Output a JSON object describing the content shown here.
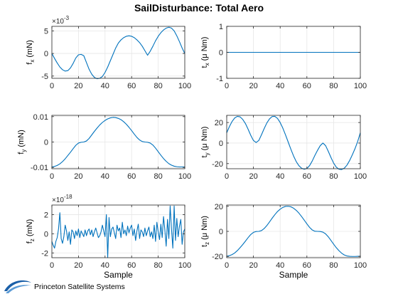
{
  "figure": {
    "title": "SailDisturbance: Total Aero",
    "logo_text": "Princeton Satellite Systems"
  },
  "colors": {
    "line": "#0072BD",
    "axis": "#262626",
    "grid": "#e6e6e6"
  },
  "chart_data": [
    {
      "id": "fx",
      "type": "line",
      "ylabel": "f",
      "ylabel_sub": "x",
      "ylabel_unit": "(mN)",
      "exponent_base": "×10",
      "exponent": "-3",
      "xlabel": "",
      "xlim": [
        0,
        100
      ],
      "ylim": [
        -5.5,
        6.0
      ],
      "xticks": [
        "0",
        "20",
        "40",
        "60",
        "80",
        "100"
      ],
      "yticks": [
        {
          "v": -5,
          "label": "-5"
        },
        {
          "v": 0,
          "label": "0"
        },
        {
          "v": 5,
          "label": "5"
        }
      ],
      "grid": true,
      "x": [
        0,
        2,
        4,
        6,
        8,
        10,
        12,
        14,
        16,
        18,
        20,
        22,
        24,
        26,
        28,
        30,
        32,
        34,
        36,
        38,
        40,
        42,
        44,
        46,
        48,
        50,
        52,
        54,
        56,
        58,
        60,
        62,
        64,
        66,
        68,
        70,
        72,
        74,
        76,
        78,
        80,
        82,
        84,
        86,
        88,
        90,
        92,
        94,
        96,
        98,
        100
      ],
      "y": [
        0.0,
        -1.1,
        -2.1,
        -3.0,
        -3.6,
        -3.9,
        -3.8,
        -3.2,
        -2.2,
        -1.0,
        -0.3,
        -0.2,
        -0.5,
        -2.0,
        -3.5,
        -4.6,
        -5.3,
        -5.6,
        -5.5,
        -5.1,
        -4.2,
        -3.0,
        -1.6,
        -0.2,
        1.2,
        2.3,
        3.0,
        3.5,
        3.8,
        3.9,
        3.8,
        3.5,
        3.0,
        2.4,
        1.6,
        0.6,
        -0.4,
        0.5,
        1.6,
        2.8,
        3.8,
        4.6,
        5.2,
        5.6,
        5.8,
        5.6,
        5.0,
        3.9,
        2.6,
        1.2,
        0.0
      ]
    },
    {
      "id": "tx",
      "type": "line",
      "ylabel": "t",
      "ylabel_sub": "x",
      "ylabel_unit": "(μ Nm)",
      "xlabel": "",
      "xlim": [
        0,
        100
      ],
      "ylim": [
        -1,
        1
      ],
      "xticks": [
        "0",
        "20",
        "40",
        "60",
        "80",
        "100"
      ],
      "yticks": [
        {
          "v": -1,
          "label": "-1"
        },
        {
          "v": 0,
          "label": "0"
        },
        {
          "v": 1,
          "label": "1"
        }
      ],
      "grid": true,
      "x": [
        0,
        100
      ],
      "y": [
        0,
        0
      ]
    },
    {
      "id": "fy",
      "type": "line",
      "ylabel": "f",
      "ylabel_sub": "y",
      "ylabel_unit": "(mN)",
      "xlabel": "",
      "xlim": [
        0,
        100
      ],
      "ylim": [
        -0.0105,
        0.0105
      ],
      "xticks": [
        "0",
        "20",
        "40",
        "60",
        "80",
        "100"
      ],
      "yticks": [
        {
          "v": -0.01,
          "label": "-0.01"
        },
        {
          "v": 0,
          "label": "0"
        },
        {
          "v": 0.01,
          "label": "0.01"
        }
      ],
      "grid": true,
      "x": [
        0,
        2,
        4,
        6,
        8,
        10,
        12,
        14,
        16,
        18,
        20,
        22,
        24,
        26,
        28,
        30,
        32,
        34,
        36,
        38,
        40,
        42,
        44,
        46,
        48,
        50,
        52,
        54,
        56,
        58,
        60,
        62,
        64,
        66,
        68,
        70,
        72,
        74,
        76,
        78,
        80,
        82,
        84,
        86,
        88,
        90,
        92,
        94,
        96,
        98,
        100
      ],
      "y": [
        -0.0098,
        -0.0096,
        -0.0092,
        -0.0086,
        -0.0077,
        -0.0066,
        -0.0053,
        -0.004,
        -0.0026,
        -0.0013,
        -0.0004,
        -0.0001,
        0.0,
        0.0004,
        0.0014,
        0.0028,
        0.0042,
        0.0055,
        0.0067,
        0.0077,
        0.0085,
        0.0091,
        0.0095,
        0.0097,
        0.0096,
        0.0093,
        0.0088,
        0.008,
        0.007,
        0.0058,
        0.0045,
        0.0031,
        0.0018,
        0.0008,
        0.0002,
        0.0,
        -0.0001,
        -0.0004,
        -0.0012,
        -0.0024,
        -0.0038,
        -0.0052,
        -0.0065,
        -0.0076,
        -0.0085,
        -0.0091,
        -0.0095,
        -0.0097,
        -0.0098,
        -0.0098,
        -0.0098
      ]
    },
    {
      "id": "ty",
      "type": "line",
      "ylabel": "t",
      "ylabel_sub": "y",
      "ylabel_unit": "(μ Nm)",
      "xlabel": "",
      "xlim": [
        0,
        100
      ],
      "ylim": [
        -25,
        27
      ],
      "xticks": [
        "0",
        "20",
        "40",
        "60",
        "80",
        "100"
      ],
      "yticks": [
        {
          "v": -20,
          "label": "-20"
        },
        {
          "v": 0,
          "label": "0"
        },
        {
          "v": 20,
          "label": "20"
        }
      ],
      "grid": true,
      "x": [
        0,
        2,
        4,
        6,
        8,
        10,
        12,
        14,
        16,
        18,
        20,
        22,
        24,
        26,
        28,
        30,
        32,
        34,
        36,
        38,
        40,
        42,
        44,
        46,
        48,
        50,
        52,
        54,
        56,
        58,
        60,
        62,
        64,
        66,
        68,
        70,
        72,
        74,
        76,
        78,
        80,
        82,
        84,
        86,
        88,
        90,
        92,
        94,
        96,
        98,
        100
      ],
      "y": [
        10.0,
        16.0,
        21.0,
        24.5,
        26.0,
        25.5,
        23.0,
        19.0,
        13.5,
        7.5,
        2.5,
        0.5,
        2.5,
        8.0,
        14.0,
        19.5,
        23.5,
        25.8,
        26.0,
        24.0,
        20.0,
        14.5,
        8.0,
        1.0,
        -6.0,
        -12.5,
        -18.0,
        -22.0,
        -24.5,
        -25.5,
        -24.8,
        -22.0,
        -17.5,
        -12.0,
        -7.0,
        -2.5,
        0.0,
        -2.5,
        -8.0,
        -14.0,
        -19.5,
        -23.5,
        -25.5,
        -25.8,
        -24.5,
        -21.5,
        -17.0,
        -11.5,
        -5.5,
        1.5,
        10.0
      ]
    },
    {
      "id": "fz",
      "type": "line",
      "ylabel": "f",
      "ylabel_sub": "z",
      "ylabel_unit": "(mN)",
      "exponent_base": "×10",
      "exponent": "-18",
      "xlabel": "Sample",
      "xlim": [
        0,
        100
      ],
      "ylim": [
        -2.5,
        3.0
      ],
      "xticks": [
        "0",
        "20",
        "40",
        "60",
        "80",
        "100"
      ],
      "yticks": [
        {
          "v": -2,
          "label": "-2"
        },
        {
          "v": 0,
          "label": "0"
        },
        {
          "v": 2,
          "label": "2"
        }
      ],
      "grid": true,
      "x": [
        0,
        1,
        2,
        3,
        4,
        5,
        6,
        7,
        8,
        9,
        10,
        11,
        12,
        13,
        14,
        15,
        16,
        17,
        18,
        19,
        20,
        21,
        22,
        23,
        24,
        25,
        26,
        27,
        28,
        29,
        30,
        31,
        32,
        33,
        34,
        35,
        36,
        37,
        38,
        39,
        40,
        41,
        42,
        43,
        44,
        45,
        46,
        47,
        48,
        49,
        50,
        51,
        52,
        53,
        54,
        55,
        56,
        57,
        58,
        59,
        60,
        61,
        62,
        63,
        64,
        65,
        66,
        67,
        68,
        69,
        70,
        71,
        72,
        73,
        74,
        75,
        76,
        77,
        78,
        79,
        80,
        81,
        82,
        83,
        84,
        85,
        86,
        87,
        88,
        89,
        90,
        91,
        92,
        93,
        94,
        95,
        96,
        97,
        98,
        99,
        100
      ],
      "y": [
        -0.8,
        -1.2,
        -1.5,
        -0.8,
        -0.4,
        0.5,
        2.2,
        -0.5,
        -1.0,
        -0.3,
        0.9,
        0.3,
        -0.7,
        0.2,
        -1.1,
        0.4,
        0.2,
        -0.5,
        0.3,
        -0.2,
        0.5,
        -0.4,
        0.3,
        0.0,
        -0.3,
        0.4,
        -0.2,
        0.3,
        0.5,
        -0.1,
        0.4,
        -0.3,
        0.2,
        0.6,
        0.1,
        -0.4,
        -0.2,
        0.2,
        0.9,
        0.3,
        -0.3,
        2.0,
        -2.5,
        1.7,
        -0.3,
        0.5,
        0.7,
        0.1,
        -0.5,
        0.9,
        0.3,
        0.6,
        -0.4,
        1.2,
        0.0,
        0.4,
        -0.2,
        0.8,
        0.1,
        0.6,
        0.9,
        -0.2,
        0.5,
        -0.7,
        0.3,
        1.0,
        -0.5,
        0.4,
        0.2,
        -0.3,
        0.6,
        -0.2,
        0.3,
        0.7,
        -0.3,
        0.2,
        -0.5,
        0.9,
        -0.8,
        1.2,
        0.2,
        -0.6,
        1.0,
        -0.4,
        1.8,
        0.4,
        -1.3,
        1.5,
        -0.5,
        2.9,
        0.5,
        -1.5,
        2.9,
        -0.7,
        1.6,
        -0.3,
        0.8,
        1.5,
        -1.1,
        0.2,
        0.5
      ]
    },
    {
      "id": "tz",
      "type": "line",
      "ylabel": "t",
      "ylabel_sub": "z",
      "ylabel_unit": "(μ Nm)",
      "xlabel": "Sample",
      "xlim": [
        0,
        100
      ],
      "ylim": [
        -21,
        21
      ],
      "xticks": [
        "0",
        "20",
        "40",
        "60",
        "80",
        "100"
      ],
      "yticks": [
        {
          "v": -20,
          "label": "-20"
        },
        {
          "v": 0,
          "label": "0"
        },
        {
          "v": 20,
          "label": "20"
        }
      ],
      "grid": true,
      "x": [
        0,
        2,
        4,
        6,
        8,
        10,
        12,
        14,
        16,
        18,
        20,
        22,
        24,
        26,
        28,
        30,
        32,
        34,
        36,
        38,
        40,
        42,
        44,
        46,
        48,
        50,
        52,
        54,
        56,
        58,
        60,
        62,
        64,
        66,
        68,
        70,
        72,
        74,
        76,
        78,
        80,
        82,
        84,
        86,
        88,
        90,
        92,
        94,
        96,
        98,
        100
      ],
      "y": [
        -19.8,
        -19.4,
        -18.5,
        -17.2,
        -15.3,
        -13.0,
        -10.5,
        -7.8,
        -5.0,
        -2.5,
        -0.8,
        -0.1,
        0.0,
        0.6,
        2.2,
        4.6,
        7.5,
        10.5,
        13.3,
        15.8,
        17.7,
        19.1,
        19.9,
        20.0,
        19.6,
        18.5,
        16.8,
        14.6,
        11.9,
        9.0,
        6.0,
        3.2,
        1.1,
        0.1,
        0.0,
        -0.1,
        -0.6,
        -2.0,
        -4.3,
        -7.2,
        -10.2,
        -13.0,
        -15.4,
        -17.4,
        -18.8,
        -19.6,
        -19.9,
        -20.0,
        -20.0,
        -19.9,
        -19.8
      ]
    }
  ]
}
